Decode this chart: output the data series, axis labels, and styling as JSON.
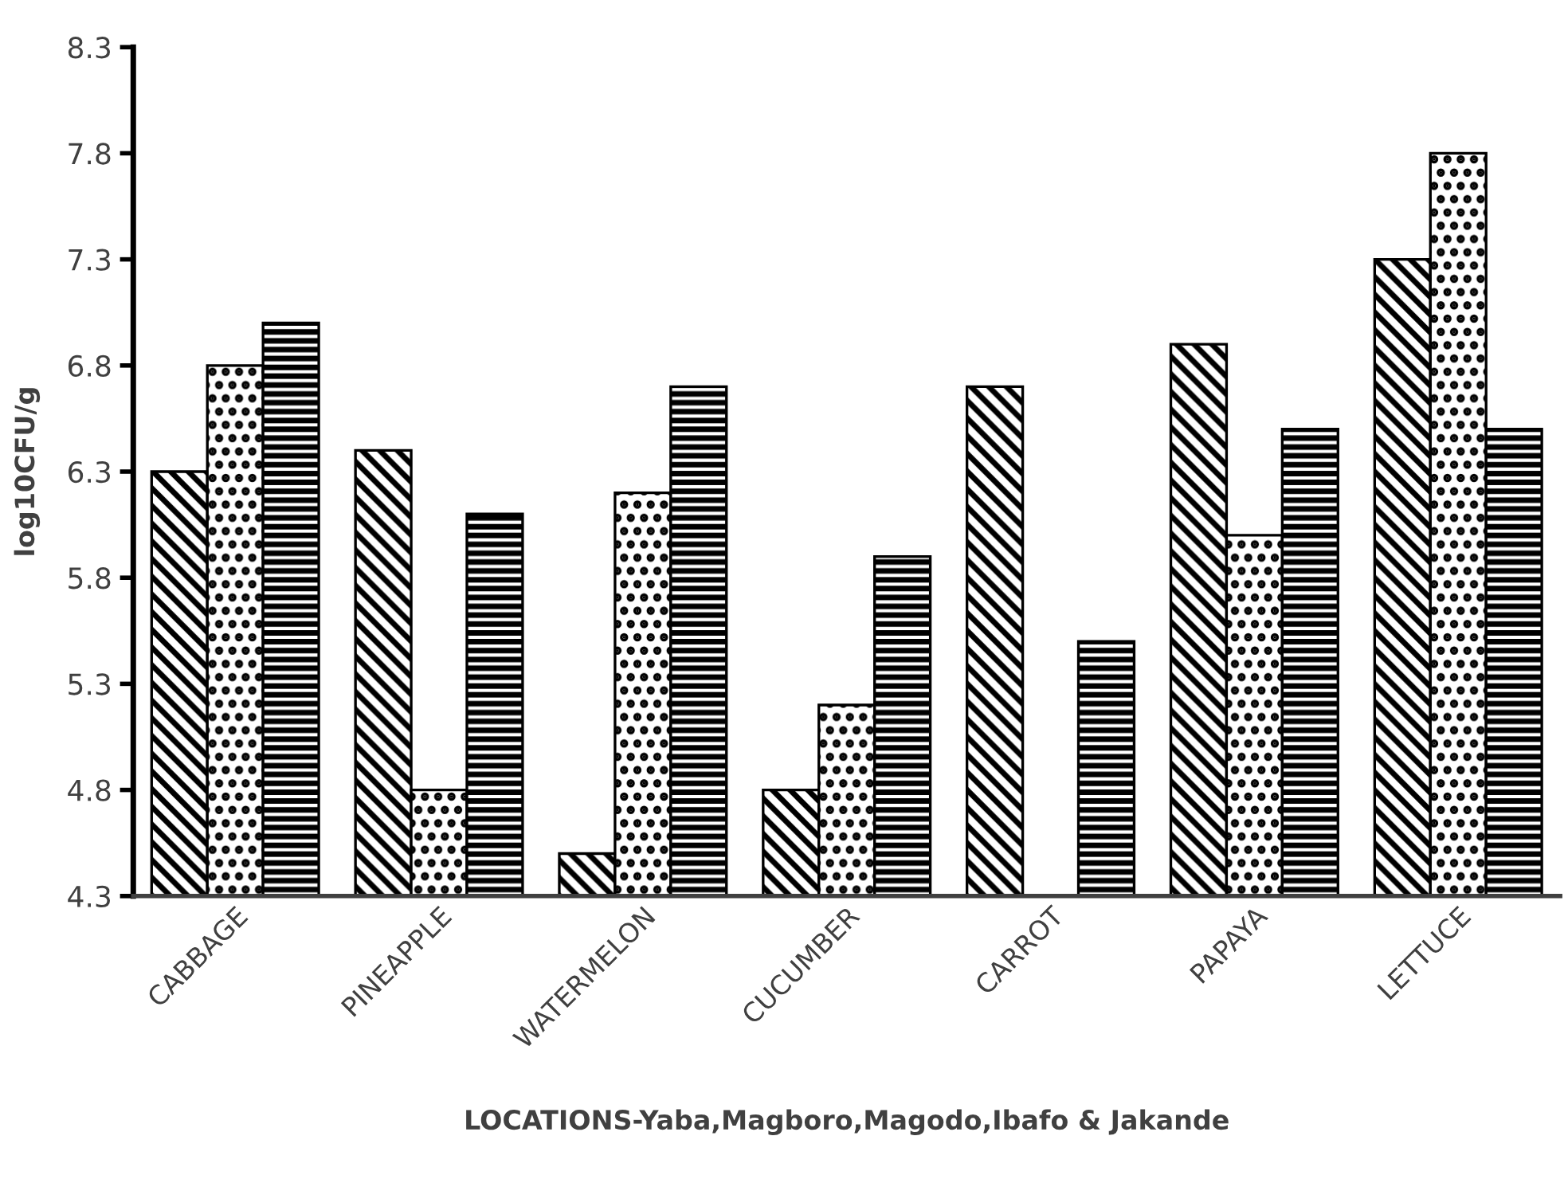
{
  "chart_data": {
    "type": "bar",
    "xlabel": "LOCATIONS-Yaba,Magboro,Magodo,Ibafo & Jakande",
    "ylabel": "log10CFU/g",
    "categories": [
      "CABBAGE",
      "PINEAPPLE",
      "WATERMELON",
      "CUCUMBER",
      "CARROT",
      "PAPAYA",
      "LETTUCE"
    ],
    "series": [
      {
        "color": "#000000",
        "values": [
          6.3,
          6.4,
          4.5,
          4.8,
          6.7,
          6.9,
          7.3
        ]
      },
      {
        "color": "#000000",
        "values": [
          6.8,
          4.8,
          6.2,
          5.2,
          null,
          6.0,
          7.8
        ]
      },
      {
        "color": "#000000",
        "values": [
          7.0,
          6.1,
          6.7,
          5.9,
          5.5,
          6.5,
          6.5
        ]
      }
    ],
    "ylim": [
      4.3,
      8.3
    ],
    "yticks": [
      {
        "value": 4.3,
        "label": "4.3"
      },
      {
        "value": 4.8,
        "label": "4.8"
      },
      {
        "value": 5.3,
        "label": "5.3"
      },
      {
        "value": 5.8,
        "label": "5.8"
      },
      {
        "value": 6.3,
        "label": "6.3"
      },
      {
        "value": 6.8,
        "label": "6.8"
      },
      {
        "value": 7.3,
        "label": "7.3"
      },
      {
        "value": 7.8,
        "label": "7.8"
      },
      {
        "value": 8.3,
        "label": "8.3"
      }
    ],
    "grid": false,
    "legend": false
  }
}
